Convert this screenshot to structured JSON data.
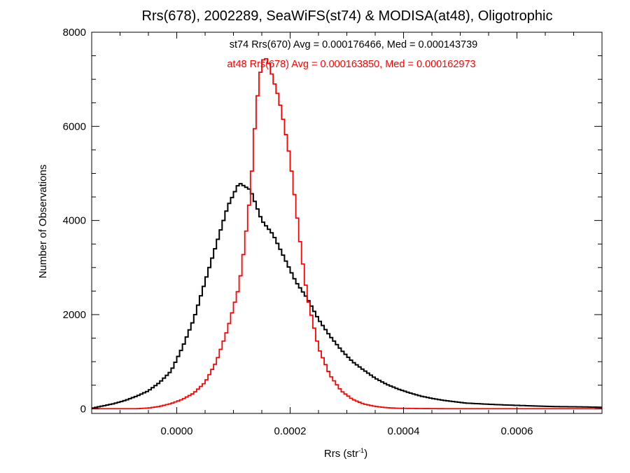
{
  "chart_data": {
    "type": "histogram-step",
    "title": "Rrs(678), 2002289, SeaWiFS(st74) & MODISA(at48), Oligotrophic",
    "xlabel_main": "Rrs (str",
    "xlabel_sup": "-1",
    "xlabel_close": ")",
    "ylabel": "Number of Observations",
    "xlim": [
      -0.00015,
      0.00075
    ],
    "ylim": [
      -100,
      8000
    ],
    "x_ticks": [
      0.0,
      0.0002,
      0.0004,
      0.0006
    ],
    "x_tick_labels": [
      "0.0000",
      "0.0002",
      "0.0004",
      "0.0006"
    ],
    "y_ticks": [
      0,
      2000,
      4000,
      6000,
      8000
    ],
    "y_tick_labels": [
      "0",
      "2000",
      "4000",
      "6000",
      "8000"
    ],
    "annotations": [
      {
        "text": "st74 Rrs(670) Avg = 0.000176466, Med = 0.000143739",
        "color": "#000000"
      },
      {
        "text": "at48 Rrs(678) Avg = 0.000163850, Med = 0.000162973",
        "color": "#ff0000"
      }
    ],
    "series": [
      {
        "color": "#000000",
        "bin_width": 5e-06,
        "points": [
          [
            -0.00015,
            10
          ],
          [
            -0.00013,
            60
          ],
          [
            -0.00011,
            110
          ],
          [
            -9e-05,
            180
          ],
          [
            -7e-05,
            270
          ],
          [
            -5e-05,
            380
          ],
          [
            -3e-05,
            560
          ],
          [
            -1e-05,
            800
          ],
          [
            1e-05,
            1300
          ],
          [
            3e-05,
            1900
          ],
          [
            5e-05,
            2700
          ],
          [
            7e-05,
            3500
          ],
          [
            9e-05,
            4300
          ],
          [
            0.00011,
            4800
          ],
          [
            0.00013,
            4650
          ],
          [
            0.00015,
            4000
          ],
          [
            0.00017,
            3700
          ],
          [
            0.00019,
            3200
          ],
          [
            0.00021,
            2700
          ],
          [
            0.00023,
            2350
          ],
          [
            0.00025,
            1900
          ],
          [
            0.00027,
            1550
          ],
          [
            0.00029,
            1250
          ],
          [
            0.00031,
            1000
          ],
          [
            0.00033,
            820
          ],
          [
            0.00035,
            650
          ],
          [
            0.00037,
            520
          ],
          [
            0.00039,
            420
          ],
          [
            0.00041,
            340
          ],
          [
            0.00043,
            270
          ],
          [
            0.00045,
            220
          ],
          [
            0.00047,
            180
          ],
          [
            0.00049,
            150
          ],
          [
            0.00051,
            120
          ],
          [
            0.00055,
            95
          ],
          [
            0.00059,
            75
          ],
          [
            0.00063,
            60
          ],
          [
            0.00067,
            45
          ],
          [
            0.00071,
            40
          ],
          [
            0.00075,
            30
          ]
        ]
      },
      {
        "color": "#ff0000",
        "bin_width": 5e-06,
        "points": [
          [
            -0.00015,
            0
          ],
          [
            -7e-05,
            0
          ],
          [
            -5e-05,
            15
          ],
          [
            -3e-05,
            50
          ],
          [
            -1e-05,
            110
          ],
          [
            1e-05,
            200
          ],
          [
            3e-05,
            330
          ],
          [
            5e-05,
            560
          ],
          [
            7e-05,
            1000
          ],
          [
            9e-05,
            1700
          ],
          [
            0.00011,
            2600
          ],
          [
            0.00012,
            3500
          ],
          [
            0.00013,
            4600
          ],
          [
            0.00014,
            6400
          ],
          [
            0.00015,
            7400
          ],
          [
            0.00016,
            7450
          ],
          [
            0.00017,
            7000
          ],
          [
            0.00018,
            6600
          ],
          [
            0.00019,
            6000
          ],
          [
            0.0002,
            5300
          ],
          [
            0.00021,
            4300
          ],
          [
            0.00022,
            3300
          ],
          [
            0.00023,
            2400
          ],
          [
            0.00025,
            1300
          ],
          [
            0.00027,
            720
          ],
          [
            0.00029,
            380
          ],
          [
            0.00031,
            200
          ],
          [
            0.00033,
            100
          ],
          [
            0.00035,
            50
          ],
          [
            0.00037,
            22
          ],
          [
            0.00039,
            10
          ],
          [
            0.00043,
            4
          ],
          [
            0.00047,
            1
          ],
          [
            0.00055,
            0
          ],
          [
            0.00075,
            0
          ]
        ]
      }
    ]
  }
}
